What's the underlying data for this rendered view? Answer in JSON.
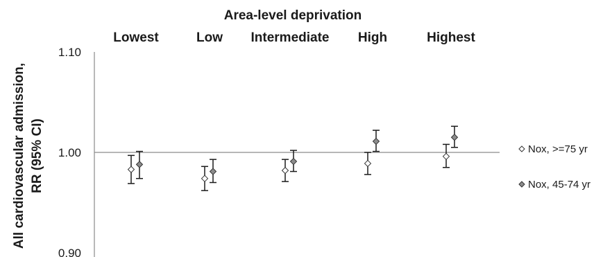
{
  "chart_data": {
    "type": "scatter",
    "title": "Area-level deprivation",
    "ylabel": [
      "All cardiovascular admission,",
      "RR (95% CI)"
    ],
    "categories": [
      "Lowest",
      "Low",
      "Intermediate",
      "High",
      "Highest"
    ],
    "ylim": [
      0.9,
      1.1
    ],
    "yticks": [
      "0.90",
      "1.00",
      "1.10"
    ],
    "reference_line": 1.0,
    "legend_position": "right",
    "series": [
      {
        "name": "Nox, >=75 yr",
        "marker": "open-diamond",
        "color": "#ffffff",
        "values": [
          0.983,
          0.974,
          0.982,
          0.989,
          0.996
        ],
        "lower": [
          0.969,
          0.962,
          0.971,
          0.978,
          0.985
        ],
        "upper": [
          0.997,
          0.986,
          0.993,
          1.0,
          1.008
        ]
      },
      {
        "name": "Nox, 45-74 yr",
        "marker": "filled-diamond",
        "color": "#8c8c8c",
        "values": [
          0.988,
          0.981,
          0.991,
          1.011,
          1.015
        ],
        "lower": [
          0.974,
          0.97,
          0.981,
          1.001,
          1.005
        ],
        "upper": [
          1.001,
          0.993,
          1.002,
          1.022,
          1.026
        ]
      }
    ]
  }
}
